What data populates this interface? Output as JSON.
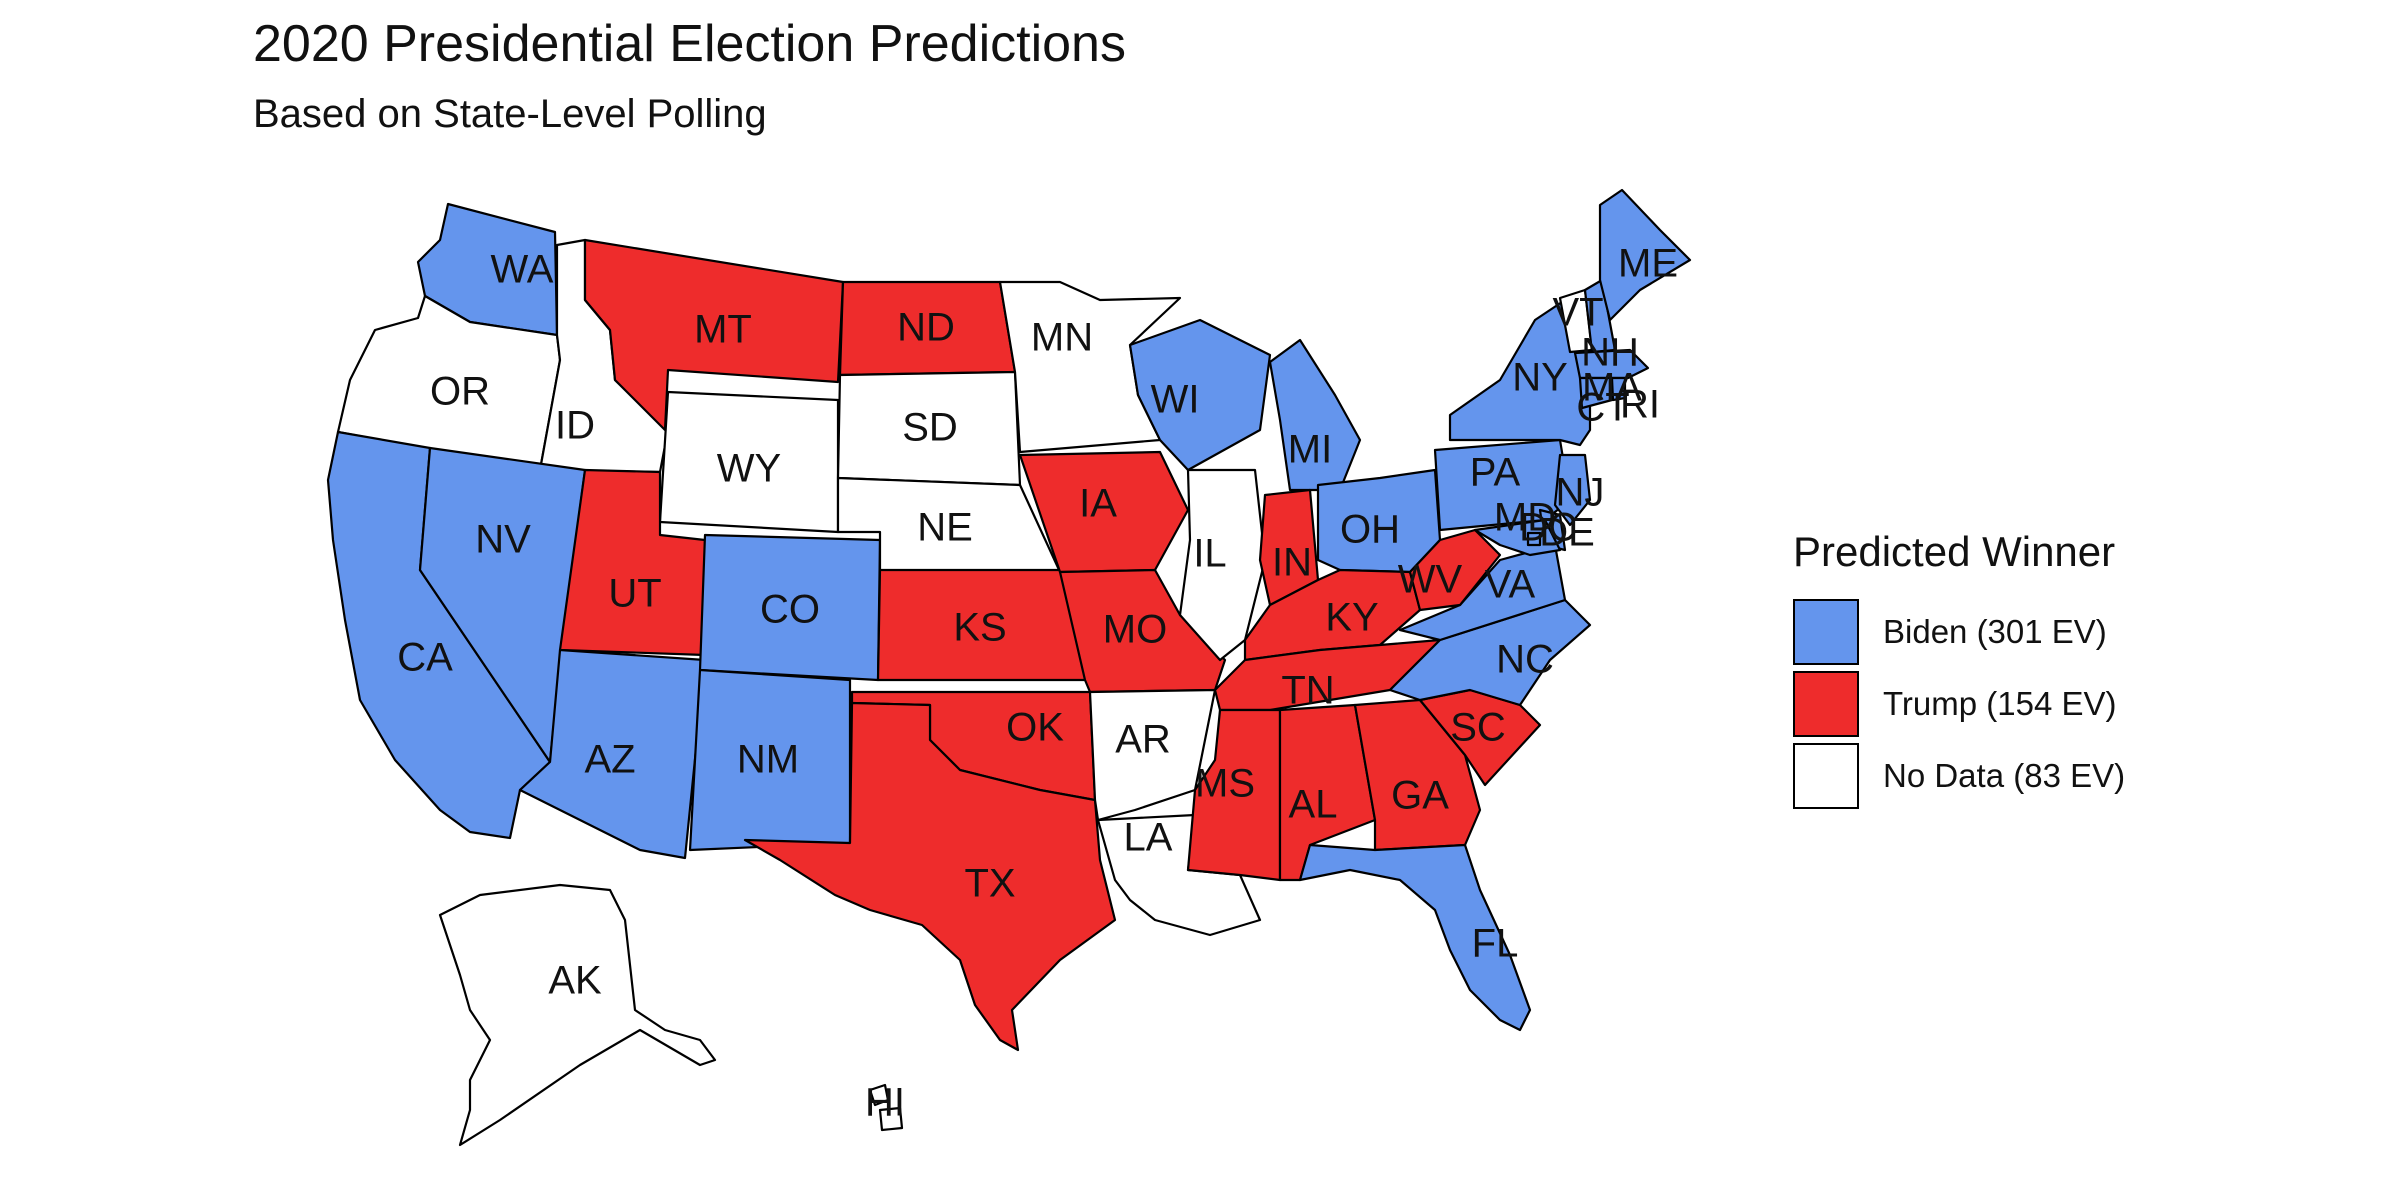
{
  "title": "2020 Presidential Election Predictions",
  "subtitle": "Based on State-Level Polling",
  "colors": {
    "biden": "#6495ED",
    "trump": "#EE2C2C",
    "none": "#FFFFFF"
  },
  "legend": {
    "title": "Predicted Winner",
    "items": [
      {
        "key": "biden",
        "label": "Biden (301 EV)"
      },
      {
        "key": "trump",
        "label": "Trump (154 EV)"
      },
      {
        "key": "none",
        "label": "No Data (83 EV)"
      }
    ]
  },
  "states": [
    {
      "abbr": "WA",
      "winner": "biden"
    },
    {
      "abbr": "OR",
      "winner": "none"
    },
    {
      "abbr": "CA",
      "winner": "biden"
    },
    {
      "abbr": "ID",
      "winner": "none"
    },
    {
      "abbr": "NV",
      "winner": "biden"
    },
    {
      "abbr": "MT",
      "winner": "trump"
    },
    {
      "abbr": "WY",
      "winner": "none"
    },
    {
      "abbr": "UT",
      "winner": "trump"
    },
    {
      "abbr": "AZ",
      "winner": "biden"
    },
    {
      "abbr": "CO",
      "winner": "biden"
    },
    {
      "abbr": "NM",
      "winner": "biden"
    },
    {
      "abbr": "ND",
      "winner": "trump"
    },
    {
      "abbr": "SD",
      "winner": "none"
    },
    {
      "abbr": "NE",
      "winner": "none"
    },
    {
      "abbr": "KS",
      "winner": "trump"
    },
    {
      "abbr": "OK",
      "winner": "trump"
    },
    {
      "abbr": "TX",
      "winner": "trump"
    },
    {
      "abbr": "MN",
      "winner": "none"
    },
    {
      "abbr": "IA",
      "winner": "trump"
    },
    {
      "abbr": "MO",
      "winner": "trump"
    },
    {
      "abbr": "AR",
      "winner": "none"
    },
    {
      "abbr": "LA",
      "winner": "none"
    },
    {
      "abbr": "WI",
      "winner": "biden"
    },
    {
      "abbr": "IL",
      "winner": "none"
    },
    {
      "abbr": "MI",
      "winner": "biden"
    },
    {
      "abbr": "IN",
      "winner": "trump"
    },
    {
      "abbr": "OH",
      "winner": "biden"
    },
    {
      "abbr": "KY",
      "winner": "trump"
    },
    {
      "abbr": "TN",
      "winner": "trump"
    },
    {
      "abbr": "MS",
      "winner": "trump"
    },
    {
      "abbr": "AL",
      "winner": "trump"
    },
    {
      "abbr": "GA",
      "winner": "trump"
    },
    {
      "abbr": "FL",
      "winner": "biden"
    },
    {
      "abbr": "SC",
      "winner": "trump"
    },
    {
      "abbr": "NC",
      "winner": "biden"
    },
    {
      "abbr": "VA",
      "winner": "biden"
    },
    {
      "abbr": "WV",
      "winner": "trump"
    },
    {
      "abbr": "PA",
      "winner": "biden"
    },
    {
      "abbr": "NY",
      "winner": "biden"
    },
    {
      "abbr": "VT",
      "winner": "none"
    },
    {
      "abbr": "NH",
      "winner": "biden"
    },
    {
      "abbr": "ME",
      "winner": "biden"
    },
    {
      "abbr": "MA",
      "winner": "biden"
    },
    {
      "abbr": "CT",
      "winner": "biden"
    },
    {
      "abbr": "RI",
      "winner": "biden"
    },
    {
      "abbr": "NJ",
      "winner": "biden"
    },
    {
      "abbr": "DE",
      "winner": "biden"
    },
    {
      "abbr": "MD",
      "winner": "biden"
    },
    {
      "abbr": "DC",
      "winner": "biden"
    },
    {
      "abbr": "AK",
      "winner": "none"
    },
    {
      "abbr": "HI",
      "winner": "none"
    }
  ]
}
